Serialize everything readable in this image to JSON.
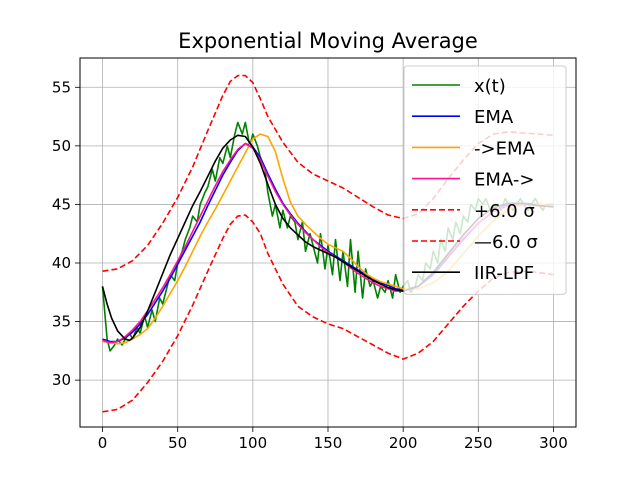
{
  "chart_data": {
    "type": "line",
    "title": "Exponential Moving Average",
    "xlabel": "",
    "ylabel": "",
    "xlim": [
      -15,
      315
    ],
    "ylim": [
      26,
      57.5
    ],
    "grid": true,
    "legend_position": "top-right",
    "x_ticks": [
      0,
      50,
      100,
      150,
      200,
      250,
      300
    ],
    "y_ticks": [
      30,
      35,
      40,
      45,
      50,
      55
    ],
    "x_tick_labels": [
      "0",
      "50",
      "100",
      "150",
      "200",
      "250",
      "300"
    ],
    "y_tick_labels": [
      "30",
      "35",
      "40",
      "45",
      "50",
      "55"
    ],
    "series": [
      {
        "name": "x(t)",
        "color": "#008000",
        "dash": "solid",
        "width": 1.6,
        "x": [
          0,
          3,
          5,
          8,
          10,
          13,
          15,
          18,
          20,
          23,
          25,
          28,
          30,
          33,
          35,
          38,
          40,
          43,
          45,
          48,
          50,
          53,
          55,
          58,
          60,
          63,
          65,
          68,
          70,
          73,
          75,
          78,
          80,
          83,
          85,
          88,
          90,
          93,
          95,
          98,
          100,
          103,
          105,
          108,
          110,
          113,
          115,
          118,
          120,
          123,
          125,
          128,
          130,
          133,
          135,
          138,
          140,
          143,
          145,
          148,
          150,
          153,
          155,
          158,
          160,
          163,
          165,
          168,
          170,
          173,
          175,
          178,
          180,
          183,
          185,
          188,
          190,
          193,
          195,
          198,
          200,
          203,
          205,
          208,
          210,
          213,
          215,
          218,
          220,
          223,
          225,
          228,
          230,
          233,
          235,
          238,
          240,
          243,
          245,
          248,
          250,
          253,
          255,
          258,
          260,
          263,
          265,
          268,
          270,
          273,
          275,
          278,
          280,
          283,
          285,
          288,
          290,
          293,
          295,
          298,
          300
        ],
        "y": [
          38,
          33.5,
          32.5,
          33,
          33.5,
          33,
          33.5,
          34,
          33.5,
          34.5,
          34,
          35.5,
          34.5,
          36,
          35,
          37,
          36.5,
          38,
          39,
          38.5,
          40,
          41,
          42,
          43,
          44,
          43.5,
          45,
          46,
          46.5,
          48,
          47,
          49,
          48.5,
          50,
          49,
          51,
          52,
          51,
          52,
          50,
          51,
          50,
          49,
          48,
          46,
          44,
          45,
          43,
          44.5,
          43,
          44,
          43.5,
          42,
          43.5,
          41,
          42.5,
          41.5,
          40,
          42.5,
          39.5,
          41.5,
          39,
          42,
          38.5,
          41,
          38,
          42,
          37.5,
          41,
          37,
          39.5,
          38,
          38.5,
          37,
          38,
          37.5,
          38.5,
          37,
          39,
          37.5,
          38,
          38.5,
          37.5,
          38,
          39,
          38.5,
          40,
          39.5,
          41,
          40,
          42,
          41,
          43,
          42,
          43.5,
          42.5,
          44,
          43.5,
          45,
          44.5,
          45.5,
          45,
          45.5,
          44.5,
          45,
          45,
          44.5,
          45.5,
          45,
          44.5,
          45,
          45.5,
          45,
          44.5,
          45,
          45.5,
          45,
          44.5,
          45,
          45,
          45
        ]
      },
      {
        "name": "EMA",
        "color": "#0000ff",
        "dash": "solid",
        "width": 1.6,
        "x": [
          0,
          5,
          10,
          15,
          20,
          25,
          30,
          35,
          40,
          45,
          50,
          55,
          60,
          65,
          70,
          75,
          80,
          85,
          90,
          95,
          100,
          105,
          110,
          115,
          120,
          125,
          130,
          135,
          140,
          145,
          150,
          155,
          160,
          165,
          170,
          175,
          180,
          185,
          190,
          195,
          200,
          210,
          220,
          230,
          240,
          250,
          260,
          270,
          280,
          290,
          300
        ],
        "y": [
          33.5,
          33.3,
          33.3,
          33.6,
          34.1,
          34.8,
          35.6,
          36.6,
          37.6,
          38.7,
          39.9,
          41.1,
          42.3,
          43.5,
          44.9,
          46.2,
          47.5,
          48.6,
          49.6,
          50.2,
          49.9,
          49.0,
          47.6,
          46.3,
          45.1,
          44.2,
          43.4,
          42.7,
          42.0,
          41.5,
          41.0,
          40.6,
          40.2,
          39.8,
          39.4,
          39.0,
          38.6,
          38.3,
          38.1,
          37.8,
          37.7,
          38.0,
          39.0,
          40.5,
          42.0,
          43.4,
          44.4,
          45.0,
          45.1,
          45.0,
          44.9
        ]
      },
      {
        "name": "->EMA",
        "color": "#ffa500",
        "dash": "solid",
        "width": 1.6,
        "x": [
          0,
          5,
          10,
          15,
          20,
          25,
          30,
          35,
          40,
          45,
          50,
          55,
          60,
          65,
          70,
          75,
          80,
          85,
          90,
          95,
          100,
          105,
          110,
          115,
          120,
          125,
          130,
          135,
          140,
          145,
          150,
          155,
          160,
          165,
          170,
          175,
          180,
          185,
          190,
          195,
          200,
          210,
          220,
          230,
          240,
          250,
          260,
          270,
          280,
          290,
          300
        ],
        "y": [
          33.3,
          33.2,
          33.1,
          33.2,
          33.5,
          33.9,
          34.4,
          35.3,
          36.3,
          37.4,
          38.5,
          39.7,
          41.0,
          42.3,
          43.5,
          44.6,
          45.8,
          47.0,
          48.2,
          49.4,
          50.6,
          51.0,
          50.8,
          49.5,
          47.2,
          45.2,
          44.0,
          43.3,
          42.7,
          42.1,
          41.6,
          41.3,
          41.0,
          40.4,
          39.7,
          39.1,
          38.7,
          38.4,
          38.2,
          38.0,
          37.8,
          37.8,
          38.3,
          39.3,
          40.8,
          42.3,
          43.6,
          44.6,
          45.0,
          45.0,
          44.9
        ]
      },
      {
        "name": "EMA->",
        "color": "#ff1493",
        "dash": "solid",
        "width": 1.6,
        "x": [
          0,
          5,
          10,
          15,
          20,
          25,
          30,
          35,
          40,
          45,
          50,
          55,
          60,
          65,
          70,
          75,
          80,
          85,
          90,
          95,
          100,
          105,
          110,
          115,
          120,
          125,
          130,
          135,
          140,
          145,
          150,
          155,
          160,
          165,
          170,
          175,
          180,
          185,
          190,
          195,
          200,
          210,
          220,
          230,
          240,
          250,
          260,
          270,
          280,
          290,
          300
        ],
        "y": [
          33.4,
          33.2,
          33.3,
          33.7,
          34.3,
          35.0,
          35.9,
          36.9,
          37.9,
          39.0,
          40.2,
          41.4,
          42.7,
          44.0,
          45.3,
          46.6,
          47.8,
          48.8,
          49.7,
          50.2,
          49.8,
          48.8,
          47.4,
          46.1,
          45.0,
          44.1,
          43.3,
          42.6,
          42.0,
          41.4,
          40.9,
          40.5,
          40.1,
          39.6,
          39.1,
          38.7,
          38.3,
          38.0,
          37.8,
          37.6,
          37.6,
          38.0,
          39.2,
          40.6,
          42.1,
          43.4,
          44.4,
          44.9,
          45.0,
          44.9,
          44.8
        ]
      },
      {
        "name": "+6.0 σ",
        "color": "#ff0000",
        "dash": "dashed",
        "width": 1.6,
        "x": [
          0,
          10,
          20,
          30,
          40,
          50,
          60,
          70,
          80,
          85,
          90,
          95,
          100,
          105,
          110,
          120,
          130,
          140,
          150,
          160,
          170,
          180,
          190,
          200,
          210,
          220,
          230,
          240,
          250,
          260,
          270,
          280,
          290,
          300
        ],
        "y": [
          39.3,
          39.5,
          40.2,
          41.5,
          43.4,
          45.6,
          48.2,
          51.3,
          54.3,
          55.5,
          56.0,
          56.0,
          55.4,
          54.0,
          52.5,
          50.3,
          48.6,
          47.6,
          47.0,
          46.4,
          45.6,
          44.8,
          44.1,
          43.8,
          44.2,
          45.5,
          47.2,
          48.8,
          50.2,
          51.0,
          51.2,
          51.1,
          51.0,
          50.9
        ]
      },
      {
        "name": "—6.0 σ",
        "color": "#ff0000",
        "dash": "dashed",
        "width": 1.6,
        "x": [
          0,
          10,
          20,
          30,
          40,
          50,
          60,
          70,
          80,
          85,
          90,
          95,
          100,
          105,
          110,
          120,
          130,
          140,
          150,
          160,
          170,
          180,
          190,
          200,
          210,
          220,
          230,
          240,
          250,
          260,
          270,
          280,
          290,
          300
        ],
        "y": [
          27.3,
          27.5,
          28.3,
          29.8,
          31.6,
          33.8,
          36.4,
          39.3,
          42.1,
          43.3,
          44.0,
          44.1,
          43.5,
          42.5,
          40.8,
          38.2,
          36.3,
          35.4,
          34.8,
          34.4,
          33.7,
          33.0,
          32.3,
          31.8,
          32.3,
          33.3,
          34.8,
          36.3,
          37.6,
          38.7,
          39.2,
          39.3,
          39.2,
          39.0
        ]
      },
      {
        "name": "IIR-LPF",
        "color": "#000000",
        "dash": "solid",
        "width": 1.6,
        "x": [
          0,
          3,
          6,
          10,
          15,
          18,
          20,
          25,
          30,
          35,
          40,
          45,
          50,
          55,
          60,
          65,
          70,
          75,
          80,
          85,
          90,
          95,
          100,
          105,
          110,
          115,
          120,
          125,
          130,
          135,
          140,
          145,
          150,
          155,
          160,
          165,
          170,
          175,
          180,
          185,
          190,
          195,
          200,
          210,
          220,
          230,
          240,
          250,
          260,
          270,
          280,
          290,
          300
        ],
        "y": [
          38.0,
          36.5,
          35.3,
          34.2,
          33.5,
          33.4,
          33.6,
          34.5,
          35.9,
          37.5,
          39.1,
          40.7,
          42.1,
          43.5,
          44.9,
          46.1,
          47.4,
          48.7,
          49.8,
          50.5,
          50.9,
          50.8,
          49.9,
          48.5,
          46.7,
          45.0,
          43.8,
          43.0,
          42.4,
          41.8,
          41.4,
          41.1,
          40.8,
          40.5,
          40.1,
          39.7,
          39.3,
          38.9,
          38.5,
          38.2,
          37.9,
          37.7,
          37.6,
          38.0,
          39.2,
          40.8,
          42.4,
          43.8,
          44.7,
          45.1,
          45.1,
          44.9,
          44.8
        ]
      }
    ]
  }
}
